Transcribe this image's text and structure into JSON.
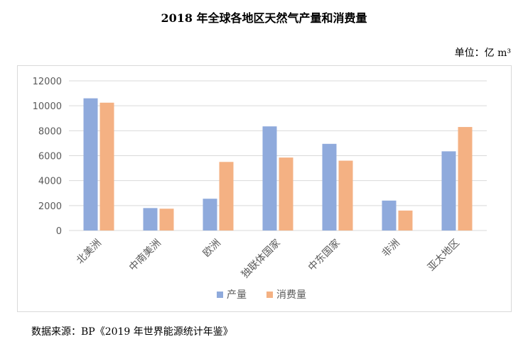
{
  "title": "2018 年全球各地区天然气产量和消费量",
  "unit": "单位：亿 m³",
  "source": "数据来源：BP《2019 年世界能源统计年鉴》",
  "chart_data": {
    "type": "bar",
    "title": "2018 年全球各地区天然气产量和消费量",
    "xlabel": "",
    "ylabel": "",
    "categories": [
      "北美洲",
      "中南美洲",
      "欧洲",
      "独联体国家",
      "中东国家",
      "非洲",
      "亚太地区"
    ],
    "series": [
      {
        "name": "产量",
        "values": [
          10600,
          1800,
          2550,
          8350,
          6950,
          2400,
          6350
        ],
        "color": "#8faadc"
      },
      {
        "name": "消费量",
        "values": [
          10250,
          1750,
          5500,
          5850,
          5600,
          1600,
          8300
        ],
        "color": "#f4b183"
      }
    ],
    "ylim": [
      0,
      12000
    ],
    "yticks": [
      0,
      2000,
      4000,
      6000,
      8000,
      10000,
      12000
    ],
    "grid": true,
    "legend": "bottom"
  }
}
